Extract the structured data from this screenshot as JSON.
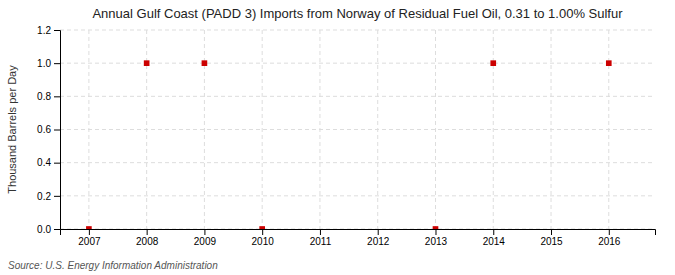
{
  "chart_data": {
    "type": "scatter",
    "title": "Annual Gulf Coast (PADD 3) Imports from Norway of Residual Fuel Oil, 0.31 to 1.00% Sulfur",
    "ylabel": "Thousand Barrels per Day",
    "annotations": [
      "Source: U.S. Energy Information Administration"
    ],
    "x": [
      2007,
      2008,
      2009,
      2010,
      2011,
      2012,
      2013,
      2014,
      2015,
      2016
    ],
    "values": [
      0.0,
      1.0,
      1.0,
      0.0,
      null,
      null,
      0.0,
      1.0,
      null,
      1.0
    ],
    "color": "#cc0000",
    "marker": "square",
    "xlim": [
      2006.5,
      2016.8
    ],
    "ylim": [
      0.0,
      1.2
    ],
    "xticks": [
      2007,
      2008,
      2009,
      2010,
      2011,
      2012,
      2013,
      2014,
      2015,
      2016
    ],
    "yticks": [
      {
        "value": 0.0,
        "label": "0.0"
      },
      0.2,
      0.4,
      0.6,
      0.8,
      {
        "value": 1.0,
        "label": "1.0"
      },
      1.2
    ],
    "grid": true
  }
}
